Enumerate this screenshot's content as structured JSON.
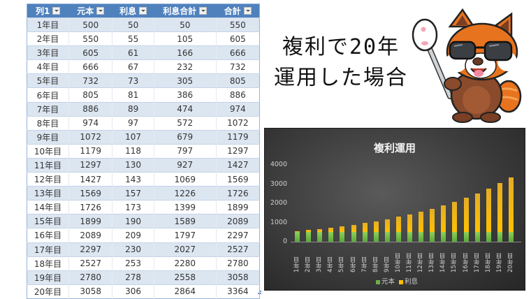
{
  "table": {
    "headers": [
      "列1",
      "元本",
      "利息",
      "利息合計",
      "合計"
    ],
    "rows": [
      [
        "1年目",
        "500",
        "50",
        "50",
        "550"
      ],
      [
        "2年目",
        "550",
        "55",
        "105",
        "605"
      ],
      [
        "3年目",
        "605",
        "61",
        "166",
        "666"
      ],
      [
        "4年目",
        "666",
        "67",
        "232",
        "732"
      ],
      [
        "5年目",
        "732",
        "73",
        "305",
        "805"
      ],
      [
        "6年目",
        "805",
        "81",
        "386",
        "886"
      ],
      [
        "7年目",
        "886",
        "89",
        "474",
        "974"
      ],
      [
        "8年目",
        "974",
        "97",
        "572",
        "1072"
      ],
      [
        "9年目",
        "1072",
        "107",
        "679",
        "1179"
      ],
      [
        "10年目",
        "1179",
        "118",
        "797",
        "1297"
      ],
      [
        "11年目",
        "1297",
        "130",
        "927",
        "1427"
      ],
      [
        "12年目",
        "1427",
        "143",
        "1069",
        "1569"
      ],
      [
        "13年目",
        "1569",
        "157",
        "1226",
        "1726"
      ],
      [
        "14年目",
        "1726",
        "173",
        "1399",
        "1899"
      ],
      [
        "15年目",
        "1899",
        "190",
        "1589",
        "2089"
      ],
      [
        "16年目",
        "2089",
        "209",
        "1797",
        "2297"
      ],
      [
        "17年目",
        "2297",
        "230",
        "2027",
        "2527"
      ],
      [
        "18年目",
        "2527",
        "253",
        "2280",
        "2780"
      ],
      [
        "19年目",
        "2780",
        "278",
        "2558",
        "3058"
      ],
      [
        "20年目",
        "3058",
        "306",
        "2864",
        "3364"
      ]
    ],
    "header_color": "#4f81bd",
    "band_color": "#dce6f1"
  },
  "heading": {
    "line1": "複利で20年",
    "line2": "運用した場合"
  },
  "mascot": {
    "description": "red-panda-mascot-with-sunglasses-holding-paw-pointer"
  },
  "chart_data": {
    "type": "bar",
    "stacked": true,
    "title": "複利運用",
    "categories": [
      "1年目",
      "2年目",
      "3年目",
      "4年目",
      "5年目",
      "6年目",
      "7年目",
      "8年目",
      "9年目",
      "10年目",
      "11年目",
      "12年目",
      "13年目",
      "14年目",
      "15年目",
      "16年目",
      "17年目",
      "18年目",
      "19年目",
      "20年目"
    ],
    "series": [
      {
        "name": "元本",
        "color": "#70ad47",
        "values": [
          500,
          500,
          500,
          500,
          500,
          500,
          500,
          500,
          500,
          500,
          500,
          500,
          500,
          500,
          500,
          500,
          500,
          500,
          500,
          500
        ]
      },
      {
        "name": "利息",
        "color": "#ffc000",
        "values": [
          50,
          105,
          166,
          232,
          305,
          386,
          474,
          572,
          679,
          797,
          927,
          1069,
          1226,
          1399,
          1589,
          1797,
          2027,
          2280,
          2558,
          2864
        ]
      }
    ],
    "yticks": [
      "0",
      "1000",
      "2000",
      "3000",
      "4000"
    ],
    "ylim": [
      0,
      4000
    ],
    "xlabel": "",
    "ylabel": "",
    "grid": false,
    "legend_position": "bottom",
    "background": "#3a3a3a"
  }
}
